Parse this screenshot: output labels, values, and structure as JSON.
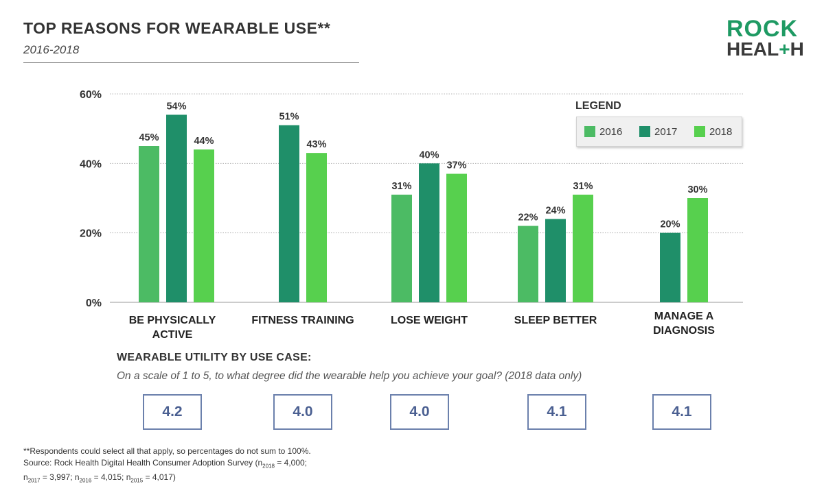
{
  "header": {
    "title": "TOP REASONS FOR WEARABLE USE**",
    "subtitle": "2016-2018"
  },
  "logo": {
    "line1": "ROCK",
    "line2_a": "HEAL",
    "line2_plus": "+",
    "line2_b": "H"
  },
  "colors": {
    "2016": "#4cbb64",
    "2017": "#1f8f69",
    "2018": "#57d04e",
    "accent": "#1e9a63",
    "score_border": "#6b80ac"
  },
  "chart_data": {
    "type": "bar",
    "title": "TOP REASONS FOR WEARABLE USE**",
    "subtitle": "2016-2018",
    "categories": [
      [
        "BE PHYSICALLY",
        "ACTIVE"
      ],
      [
        "FITNESS TRAINING"
      ],
      [
        "LOSE WEIGHT"
      ],
      [
        "SLEEP BETTER"
      ],
      [
        "MANAGE A",
        "DIAGNOSIS"
      ]
    ],
    "series": [
      {
        "name": "2016",
        "values": [
          45,
          null,
          31,
          22,
          null
        ]
      },
      {
        "name": "2017",
        "values": [
          54,
          51,
          40,
          24,
          20
        ]
      },
      {
        "name": "2018",
        "values": [
          44,
          43,
          37,
          31,
          30
        ]
      }
    ],
    "value_suffix": "%",
    "ylim": [
      0,
      60
    ],
    "yticks": [
      "0%",
      "20%",
      "40%",
      "60%"
    ],
    "ytick_values": [
      0,
      20,
      40,
      60
    ],
    "grid": true,
    "legend_title": "LEGEND",
    "legend_position": "top-right"
  },
  "utility": {
    "title": "WEARABLE UTILITY BY USE CASE:",
    "question": "On a scale of 1 to 5, to what degree did the wearable help you achieve your goal? (2018 data only)",
    "scores": [
      "4.2",
      "4.0",
      "4.0",
      "4.1",
      "4.1"
    ]
  },
  "footnote": {
    "line1": "**Respondents could select all that apply, so percentages do not sum to 100%.",
    "line2": "Source: Rock Health Digital Health Consumer Adoption Survey (n",
    "n2018_sub": "2018",
    "n2018_val": " = 4,000;",
    "n2017_pre": "n",
    "n2017_sub": "2017",
    "n2017_val": " = 3,997; n",
    "n2016_sub": "2016",
    "n2016_val": " = 4,015; n",
    "n2015_sub": "2015",
    "n2015_val": " = 4,017)"
  }
}
